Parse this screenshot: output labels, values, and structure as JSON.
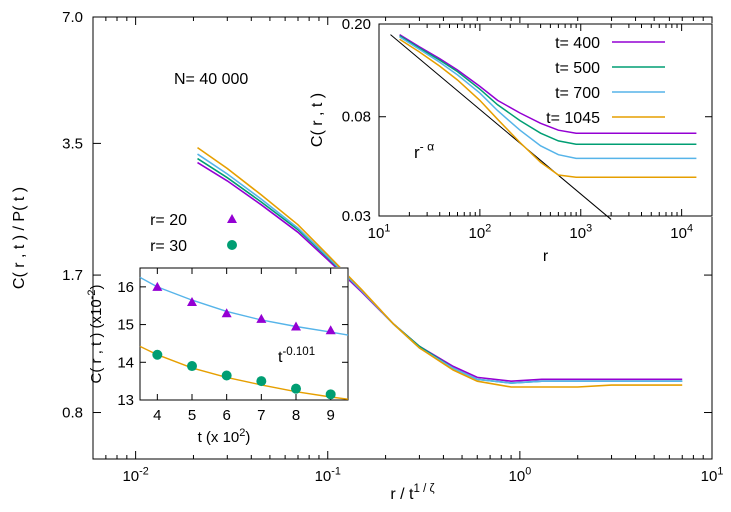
{
  "chart_data": [
    {
      "id": "main",
      "type": "line",
      "xscale": "log",
      "yscale": "log",
      "xlim": [
        0.006,
        10
      ],
      "ylim": [
        0.62,
        7.0
      ],
      "xlabel": "r / t",
      "xlabel_sup": "1 / ζ",
      "ylabel": "C( r , t ) / P( t )",
      "xticks": [
        {
          "v": 0.01,
          "base": "10",
          "exp": "-2"
        },
        {
          "v": 0.1,
          "base": "10",
          "exp": "-1"
        },
        {
          "v": 1,
          "base": "10",
          "exp": "0"
        },
        {
          "v": 10,
          "base": "10",
          "exp": "1"
        }
      ],
      "yticks": [
        {
          "v": 0.8,
          "label": "0.8"
        },
        {
          "v": 1.7,
          "label": "1.7"
        },
        {
          "v": 3.5,
          "label": "3.5"
        },
        {
          "v": 7.0,
          "label": "7.0"
        }
      ],
      "annotation": "N= 40 000",
      "series": [
        {
          "color": "#9400d3",
          "x": [
            0.021,
            0.03,
            0.045,
            0.07,
            0.1,
            0.15,
            0.22,
            0.3,
            0.45,
            0.6,
            0.9,
            1.3,
            2,
            3,
            5,
            7
          ],
          "y": [
            3.15,
            2.85,
            2.5,
            2.15,
            1.85,
            1.55,
            1.3,
            1.15,
            1.03,
            0.97,
            0.95,
            0.96,
            0.96,
            0.96,
            0.96,
            0.96
          ]
        },
        {
          "color": "#009e73",
          "x": [
            0.021,
            0.03,
            0.045,
            0.07,
            0.1,
            0.15,
            0.22,
            0.3,
            0.45,
            0.6,
            0.9,
            1.3,
            2,
            3,
            5,
            7
          ],
          "y": [
            3.22,
            2.9,
            2.54,
            2.18,
            1.87,
            1.56,
            1.3,
            1.15,
            1.02,
            0.96,
            0.94,
            0.95,
            0.95,
            0.95,
            0.95,
            0.95
          ]
        },
        {
          "color": "#56b4e9",
          "x": [
            0.021,
            0.03,
            0.045,
            0.07,
            0.1,
            0.15,
            0.22,
            0.3,
            0.45,
            0.6,
            0.9,
            1.3,
            2,
            3,
            5,
            7
          ],
          "y": [
            3.3,
            2.96,
            2.58,
            2.2,
            1.88,
            1.56,
            1.3,
            1.14,
            1.02,
            0.96,
            0.94,
            0.95,
            0.95,
            0.95,
            0.95,
            0.95
          ]
        },
        {
          "color": "#e69f00",
          "x": [
            0.021,
            0.03,
            0.045,
            0.07,
            0.1,
            0.15,
            0.22,
            0.3,
            0.45,
            0.6,
            0.9,
            1.3,
            2,
            3,
            5,
            7
          ],
          "y": [
            3.42,
            3.05,
            2.64,
            2.24,
            1.9,
            1.57,
            1.3,
            1.14,
            1.01,
            0.95,
            0.92,
            0.92,
            0.92,
            0.93,
            0.93,
            0.93
          ]
        }
      ]
    },
    {
      "id": "inset_r",
      "type": "line",
      "xscale": "log",
      "yscale": "log",
      "xlim": [
        10,
        20000
      ],
      "ylim": [
        0.03,
        0.2
      ],
      "xlabel": "r",
      "ylabel": "C( r , t )",
      "xticks": [
        {
          "v": 10,
          "base": "10",
          "exp": "1"
        },
        {
          "v": 100,
          "base": "10",
          "exp": "2"
        },
        {
          "v": 1000,
          "base": "10",
          "exp": "3"
        },
        {
          "v": 10000,
          "base": "10",
          "exp": "4"
        }
      ],
      "yticks": [
        {
          "v": 0.03,
          "label": "0.03"
        },
        {
          "v": 0.08,
          "label": "0.08"
        },
        {
          "v": 0.2,
          "label": "0.20"
        }
      ],
      "annotation_base": "r",
      "annotation_sup": "- α",
      "reference_line": {
        "x": [
          13,
          2000
        ],
        "y": [
          0.18,
          0.029
        ]
      },
      "series": [
        {
          "name": "t= 400",
          "color": "#9400d3",
          "x": [
            16,
            25,
            40,
            60,
            100,
            150,
            250,
            400,
            600,
            900,
            1500,
            3000,
            6000,
            14000
          ],
          "y": [
            0.18,
            0.16,
            0.142,
            0.127,
            0.108,
            0.094,
            0.083,
            0.075,
            0.07,
            0.068,
            0.068,
            0.068,
            0.068,
            0.068
          ]
        },
        {
          "name": "t= 500",
          "color": "#009e73",
          "x": [
            16,
            25,
            40,
            60,
            100,
            150,
            250,
            400,
            600,
            900,
            1500,
            3000,
            6000,
            14000
          ],
          "y": [
            0.178,
            0.158,
            0.14,
            0.125,
            0.105,
            0.09,
            0.077,
            0.068,
            0.063,
            0.061,
            0.061,
            0.061,
            0.061,
            0.061
          ]
        },
        {
          "name": "t= 700",
          "color": "#56b4e9",
          "x": [
            16,
            25,
            40,
            60,
            100,
            150,
            250,
            400,
            600,
            900,
            1500,
            3000,
            6000,
            14000
          ],
          "y": [
            0.176,
            0.156,
            0.137,
            0.121,
            0.101,
            0.085,
            0.07,
            0.06,
            0.055,
            0.053,
            0.053,
            0.053,
            0.053,
            0.053
          ]
        },
        {
          "name": "t= 1045",
          "color": "#e69f00",
          "x": [
            16,
            25,
            40,
            60,
            100,
            150,
            250,
            400,
            600,
            900,
            1500,
            3000,
            6000,
            14000
          ],
          "y": [
            0.172,
            0.152,
            0.132,
            0.115,
            0.094,
            0.078,
            0.062,
            0.051,
            0.045,
            0.044,
            0.044,
            0.044,
            0.044,
            0.044
          ]
        }
      ]
    },
    {
      "id": "inset_t",
      "type": "scatter",
      "xlim": [
        3.5,
        9.5
      ],
      "ylim": [
        13,
        16.5
      ],
      "xlabel": "t (x 10",
      "xlabel_sup": "2",
      "xlabel_end": ")",
      "ylabel": "C( r , t ) (x10",
      "ylabel_sup": "-2",
      "ylabel_end": ")",
      "xticks": [
        4,
        5,
        6,
        7,
        8,
        9
      ],
      "yticks": [
        13,
        14,
        15,
        16
      ],
      "annotation_base": "t",
      "annotation_sup": "-0.101",
      "series": [
        {
          "name": "r= 20",
          "marker": "triangle",
          "color": "#9400d3",
          "x": [
            4,
            5,
            6,
            7,
            8,
            9
          ],
          "y": [
            16.0,
            15.6,
            15.3,
            15.15,
            14.95,
            14.85
          ]
        },
        {
          "name": "r= 30",
          "marker": "circle",
          "color": "#009e73",
          "x": [
            4,
            5,
            6,
            7,
            8,
            9
          ],
          "y": [
            14.2,
            13.9,
            13.65,
            13.5,
            13.3,
            13.15
          ]
        }
      ],
      "fits": [
        {
          "color": "#56b4e9",
          "x": [
            3.5,
            4,
            5,
            6,
            7,
            8,
            9,
            9.5
          ],
          "y": [
            16.25,
            16.0,
            15.65,
            15.35,
            15.12,
            14.95,
            14.8,
            14.72
          ]
        },
        {
          "color": "#e69f00",
          "x": [
            3.5,
            4,
            5,
            6,
            7,
            8,
            9,
            9.5
          ],
          "y": [
            14.42,
            14.2,
            13.85,
            13.6,
            13.4,
            13.22,
            13.08,
            13.02
          ]
        }
      ]
    }
  ]
}
